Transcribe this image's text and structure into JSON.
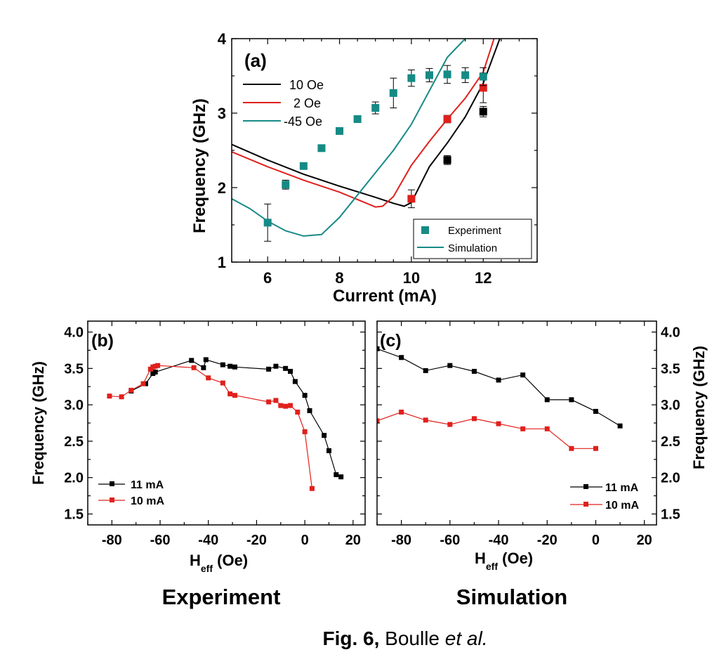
{
  "chart_data": [
    {
      "id": "a",
      "type": "line+scatter",
      "panel_label": "(a)",
      "xlabel": "Current (mA)",
      "ylabel": "Frequency (GHz)",
      "xlim": [
        5,
        13.5
      ],
      "ylim": [
        1,
        4
      ],
      "xticks": [
        6,
        8,
        10,
        12
      ],
      "yticks": [
        1,
        2,
        3,
        4
      ],
      "series": [
        {
          "name": "10 Oe",
          "kind": "simulation",
          "color": "#000000",
          "x": [
            5,
            6,
            7,
            8,
            9,
            9.5,
            9.8,
            10,
            10.5,
            11,
            11.5,
            12,
            12.5
          ],
          "y": [
            2.58,
            2.37,
            2.18,
            2.02,
            1.87,
            1.79,
            1.75,
            1.8,
            2.28,
            2.6,
            2.95,
            3.4,
            4.05
          ]
        },
        {
          "name": "2 Oe",
          "kind": "simulation",
          "color": "#e0201c",
          "x": [
            5,
            6,
            7,
            8,
            8.7,
            9,
            9.2,
            9.5,
            10,
            10.5,
            11,
            11.5,
            12,
            12.3
          ],
          "y": [
            2.48,
            2.28,
            2.1,
            1.94,
            1.8,
            1.74,
            1.75,
            1.88,
            2.3,
            2.62,
            2.92,
            3.2,
            3.55,
            4.0
          ]
        },
        {
          "name": "-45 Oe",
          "kind": "simulation",
          "color": "#168a85",
          "x": [
            5,
            5.5,
            6,
            6.5,
            7,
            7.5,
            8,
            8.5,
            9,
            9.5,
            10,
            10.5,
            11,
            11.5
          ],
          "y": [
            1.85,
            1.72,
            1.55,
            1.42,
            1.35,
            1.37,
            1.6,
            1.9,
            2.2,
            2.5,
            2.85,
            3.3,
            3.75,
            4.0
          ]
        },
        {
          "name": "10 Oe experiment",
          "kind": "experiment",
          "color": "#000000",
          "x": [
            11,
            12
          ],
          "y": [
            2.37,
            3.02
          ],
          "err": [
            0.06,
            0.07
          ]
        },
        {
          "name": "2 Oe experiment",
          "kind": "experiment",
          "color": "#e0201c",
          "x": [
            10,
            11,
            12
          ],
          "y": [
            1.85,
            2.92,
            3.34
          ],
          "err": [
            0.12,
            0.05,
            0.2
          ]
        },
        {
          "name": "-45 Oe experiment",
          "kind": "experiment",
          "color": "#168a85",
          "x": [
            6,
            6.5,
            7,
            7.5,
            8,
            8.5,
            9,
            9.5,
            10,
            10.5,
            11,
            11.5,
            12
          ],
          "y": [
            1.53,
            2.04,
            2.29,
            2.53,
            2.76,
            2.92,
            3.07,
            3.27,
            3.47,
            3.51,
            3.52,
            3.51,
            3.49
          ],
          "err": [
            0.25,
            0.06,
            0.04,
            0.03,
            0.03,
            0.04,
            0.08,
            0.2,
            0.11,
            0.09,
            0.12,
            0.1,
            0.12
          ]
        }
      ],
      "legend_lines": [
        "10 Oe",
        "2 Oe",
        "-45 Oe"
      ],
      "legend_box": [
        "Experiment",
        "Simulation"
      ]
    },
    {
      "id": "b",
      "type": "line",
      "panel_label": "(b)",
      "xlabel_main": "H",
      "xlabel_sub": "eff",
      "xlabel_unit": " (Oe)",
      "ylabel": "Frequency (GHz)",
      "xlim": [
        -90,
        25
      ],
      "ylim": [
        1.35,
        4.15
      ],
      "xticks": [
        -80,
        -60,
        -40,
        -20,
        0,
        20
      ],
      "yticks": [
        1.5,
        2.0,
        2.5,
        3.0,
        3.5,
        4.0
      ],
      "ytick_labels": [
        "1.5",
        "2.0",
        "2.5",
        "3.0",
        "3.5",
        "4.0"
      ],
      "series": [
        {
          "name": "11 mA",
          "color": "#000000",
          "x": [
            -72,
            -66,
            -63,
            -62,
            -47,
            -42,
            -41,
            -34,
            -31,
            -29,
            -15,
            -12,
            -8,
            -6,
            -4,
            0,
            2,
            8,
            10,
            13,
            15
          ],
          "y": [
            3.19,
            3.29,
            3.43,
            3.45,
            3.61,
            3.51,
            3.62,
            3.55,
            3.53,
            3.52,
            3.49,
            3.53,
            3.5,
            3.46,
            3.32,
            3.13,
            2.92,
            2.58,
            2.37,
            2.04,
            2.01
          ]
        },
        {
          "name": "10 mA",
          "color": "#e0201c",
          "x": [
            -81,
            -76,
            -72,
            -67,
            -64,
            -63,
            -62,
            -61,
            -46,
            -40,
            -34,
            -31,
            -29,
            -15,
            -12,
            -10,
            -8,
            -6,
            -3,
            0,
            3
          ],
          "y": [
            3.12,
            3.11,
            3.2,
            3.29,
            3.49,
            3.52,
            3.53,
            3.54,
            3.51,
            3.37,
            3.3,
            3.15,
            3.13,
            3.04,
            3.06,
            2.99,
            2.98,
            2.99,
            2.9,
            2.63,
            1.85
          ]
        }
      ],
      "caption": "Experiment"
    },
    {
      "id": "c",
      "type": "line",
      "panel_label": "(c)",
      "xlabel_main": "H",
      "xlabel_sub": "eff",
      "xlabel_unit": " (Oe)",
      "ylabel": "Frequency  (GHz)",
      "xlim": [
        -90,
        25
      ],
      "ylim": [
        1.35,
        4.15
      ],
      "xticks": [
        -80,
        -60,
        -40,
        -20,
        0,
        20
      ],
      "yticks": [
        1.5,
        2.0,
        2.5,
        3.0,
        3.5,
        4.0
      ],
      "ytick_labels": [
        "1.5",
        "2.0",
        "2.5",
        "3.0",
        "3.5",
        "4.0"
      ],
      "series": [
        {
          "name": "11 mA",
          "color": "#000000",
          "x": [
            -90,
            -80,
            -70,
            -60,
            -50,
            -40,
            -30,
            -20,
            -10,
            0,
            10
          ],
          "y": [
            3.77,
            3.65,
            3.47,
            3.54,
            3.46,
            3.34,
            3.41,
            3.07,
            3.07,
            2.91,
            2.71
          ]
        },
        {
          "name": "10 mA",
          "color": "#e0201c",
          "x": [
            -90,
            -80,
            -70,
            -60,
            -50,
            -40,
            -30,
            -20,
            -10,
            0
          ],
          "y": [
            2.78,
            2.9,
            2.79,
            2.73,
            2.81,
            2.74,
            2.67,
            2.67,
            2.4,
            2.4
          ]
        }
      ],
      "caption": "Simulation"
    }
  ],
  "figure_caption": {
    "bold": "Fig. 6,",
    "normal": " Boulle ",
    "italic": "et al."
  }
}
